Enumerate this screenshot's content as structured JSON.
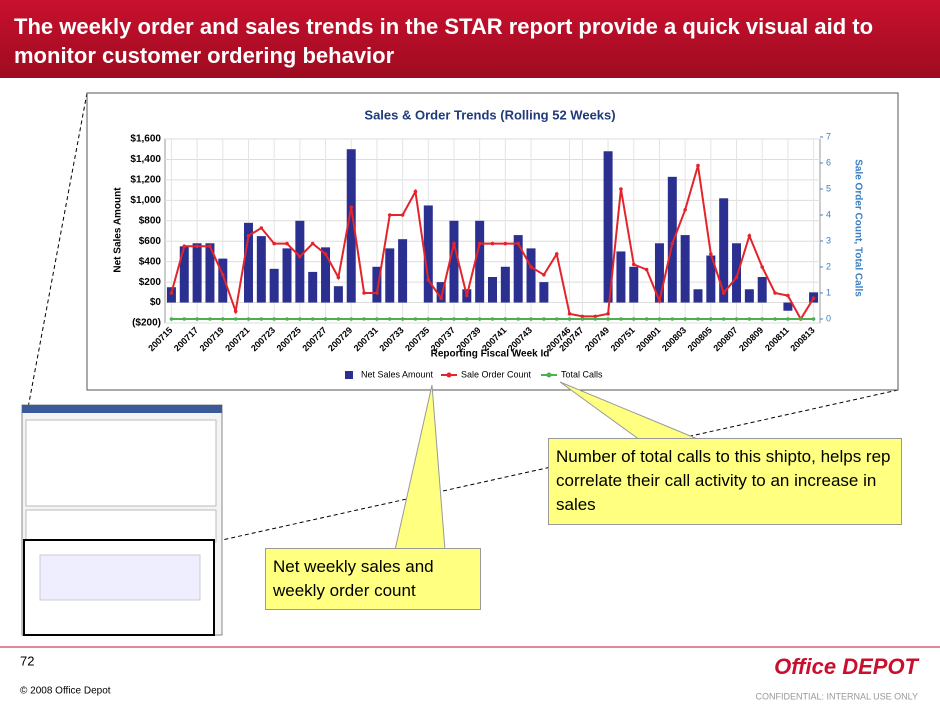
{
  "slide": {
    "title": "The weekly order and sales trends in the STAR report provide a quick visual aid to monitor customer ordering behavior",
    "page_number": "72",
    "copyright": "© 2008 Office Depot",
    "logo": "Office DEPOT",
    "confidential": "CONFIDENTIAL: INTERNAL USE ONLY"
  },
  "callouts": [
    "Number of total calls to this shipto, helps rep correlate their call activity to an increase in sales",
    "Net weekly sales and weekly order count"
  ],
  "chart_data": {
    "type": "bar_line",
    "title": "Sales & Order Trends (Rolling 52 Weeks)",
    "x_label": "Reporting Fiscal Week Id",
    "y_label": "Net Sales Amount",
    "y2_label": "Sale Order Count, Total Calls",
    "categories": [
      "200715",
      null,
      "200717",
      null,
      "200719",
      null,
      "200721",
      null,
      "200723",
      null,
      "200725",
      null,
      "200727",
      null,
      "200729",
      null,
      "200731",
      null,
      "200733",
      null,
      "200735",
      null,
      "200737",
      null,
      "200739",
      null,
      "200741",
      null,
      "200743",
      null,
      null,
      "200746",
      "200747",
      null,
      "200749",
      null,
      "200751",
      null,
      "200801",
      null,
      "200803",
      null,
      "200805",
      null,
      "200807",
      null,
      "200809",
      null,
      "200811",
      null,
      "200813"
    ],
    "series": [
      {
        "name": "Net Sales Amount",
        "color": "#2b2f8f",
        "kind": "bar",
        "values": [
          150,
          550,
          580,
          580,
          430,
          0,
          780,
          650,
          330,
          530,
          800,
          300,
          540,
          160,
          1500,
          0,
          350,
          530,
          620,
          0,
          950,
          200,
          800,
          130,
          800,
          250,
          350,
          660,
          530,
          200,
          0,
          0,
          0,
          0,
          1480,
          500,
          350,
          0,
          580,
          1230,
          660,
          130,
          460,
          1020,
          580,
          130,
          250,
          0,
          -80,
          0,
          100
        ]
      },
      {
        "name": "Sale Order Count",
        "color": "#e3242b",
        "kind": "line",
        "axis": "y2",
        "values": [
          1,
          2.8,
          2.8,
          2.8,
          1.7,
          0.3,
          3.2,
          3.5,
          2.9,
          2.9,
          2.4,
          2.9,
          2.5,
          1.6,
          4.3,
          1,
          1,
          4,
          4,
          4.9,
          1.5,
          0.8,
          2.9,
          0.9,
          2.9,
          2.9,
          2.9,
          2.9,
          2,
          1.7,
          2.5,
          0.2,
          0.1,
          0.1,
          0.2,
          5,
          2.1,
          1.9,
          0.7,
          2.9,
          4.2,
          5.9,
          2.5,
          1,
          1.6,
          3.2,
          2,
          1,
          0.9,
          0,
          0.8
        ]
      },
      {
        "name": "Total Calls",
        "color": "#4caf50",
        "kind": "line",
        "axis": "y2",
        "values": [
          0,
          0,
          0,
          0,
          0,
          0,
          0,
          0,
          0,
          0,
          0,
          0,
          0,
          0,
          0,
          0,
          0,
          0,
          0,
          0,
          0,
          0,
          0,
          0,
          0,
          0,
          0,
          0,
          0,
          0,
          0,
          0,
          0,
          0,
          0,
          0,
          0,
          0,
          0,
          0,
          0,
          0,
          0,
          0,
          0,
          0,
          0,
          0,
          0,
          0,
          0
        ]
      }
    ],
    "ylim": [
      -200,
      1600
    ],
    "yticks": [
      {
        "value": -200,
        "label": "($200)"
      },
      {
        "value": 0,
        "label": "$0"
      },
      {
        "value": 200,
        "label": "$200"
      },
      {
        "value": 400,
        "label": "$400"
      },
      {
        "value": 600,
        "label": "$600"
      },
      {
        "value": 800,
        "label": "$800"
      },
      {
        "value": 1000,
        "label": "$1,000"
      },
      {
        "value": 1200,
        "label": "$1,200"
      },
      {
        "value": 1400,
        "label": "$1,400"
      },
      {
        "value": 1600,
        "label": "$1,600"
      }
    ],
    "y2lim": [
      0,
      7
    ],
    "y2ticks": [
      0,
      1,
      2,
      3,
      4,
      5,
      6,
      7
    ],
    "grid": true,
    "legend": "bottom"
  }
}
